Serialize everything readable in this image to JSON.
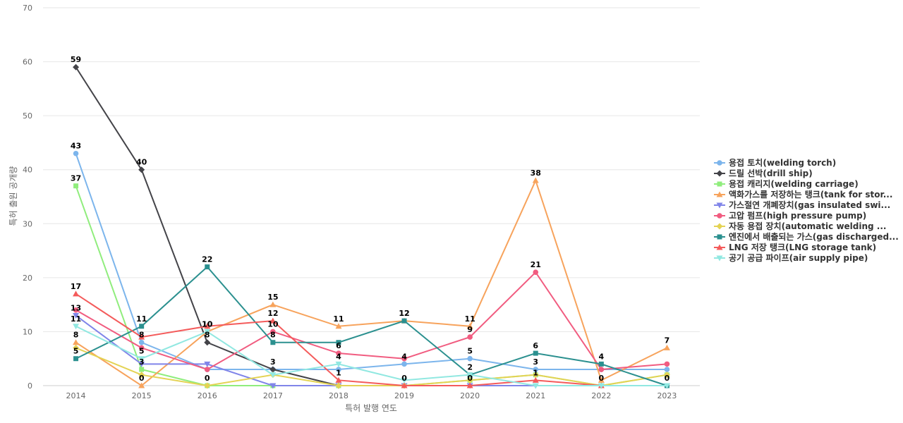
{
  "chart_data": {
    "type": "line",
    "title": "",
    "xlabel": "특허 발행 연도",
    "ylabel": "특허 출원 공개량",
    "x": [
      "2014",
      "2015",
      "2016",
      "2017",
      "2018",
      "2019",
      "2020",
      "2021",
      "2022",
      "2023"
    ],
    "ylim": [
      0,
      70
    ],
    "yticks": [
      "0",
      "10",
      "20",
      "30",
      "40",
      "50",
      "60",
      "70"
    ],
    "grid": true,
    "legend_position": "right",
    "series": [
      {
        "name": "용접 토치(welding torch)",
        "color": "#7cb5ec",
        "marker": "circle",
        "values": [
          43,
          8,
          3,
          3,
          3,
          4,
          5,
          3,
          3,
          3
        ],
        "labels": [
          true,
          true,
          false,
          false,
          false,
          true,
          true,
          true,
          false,
          false
        ]
      },
      {
        "name": "드릴 선박(drill ship)",
        "color": "#434348",
        "marker": "diamond",
        "values": [
          59,
          40,
          8,
          3,
          0,
          null,
          null,
          null,
          null,
          null
        ],
        "labels": [
          true,
          true,
          true,
          true,
          false,
          false,
          false,
          false,
          false,
          false
        ]
      },
      {
        "name": "용접 캐리지(welding carriage)",
        "color": "#90ed7d",
        "marker": "square",
        "values": [
          37,
          3,
          0,
          0,
          0,
          0,
          1,
          2,
          0,
          2
        ],
        "labels": [
          true,
          true,
          true,
          false,
          false,
          false,
          false,
          false,
          false,
          false
        ]
      },
      {
        "name": "액화가스를 저장하는 탱크(tank for stor...",
        "color": "#f7a35c",
        "marker": "triangle",
        "values": [
          8,
          0,
          10,
          15,
          11,
          12,
          11,
          38,
          1,
          7
        ],
        "labels": [
          true,
          true,
          true,
          true,
          true,
          true,
          true,
          true,
          false,
          true
        ]
      },
      {
        "name": "가스절연 개폐장치(gas insulated swi...",
        "color": "#8085e9",
        "marker": "triangle-down",
        "values": [
          13,
          4,
          4,
          0,
          0,
          0,
          0,
          0,
          0,
          0
        ],
        "labels": [
          true,
          false,
          false,
          false,
          false,
          false,
          false,
          false,
          false,
          false
        ]
      },
      {
        "name": "고압 펌프(high pressure pump)",
        "color": "#f15c80",
        "marker": "circle",
        "values": [
          14,
          7,
          3,
          10,
          6,
          5,
          9,
          21,
          3,
          4
        ],
        "labels": [
          false,
          false,
          false,
          true,
          true,
          false,
          true,
          true,
          false,
          false
        ]
      },
      {
        "name": "자동 용접 장치(automatic welding ...",
        "color": "#e4d354",
        "marker": "diamond",
        "values": [
          7,
          2,
          0,
          2,
          0,
          0,
          1,
          2,
          0,
          2
        ],
        "labels": [
          false,
          false,
          false,
          false,
          false,
          false,
          false,
          false,
          false,
          false
        ]
      },
      {
        "name": "엔진에서 배출되는 가스(gas discharged...",
        "color": "#2b908f",
        "marker": "square",
        "values": [
          5,
          11,
          22,
          8,
          8,
          12,
          2,
          6,
          4,
          0
        ],
        "labels": [
          true,
          true,
          true,
          true,
          false,
          true,
          true,
          true,
          true,
          true
        ]
      },
      {
        "name": "LNG 저장 탱크(LNG storage tank)",
        "color": "#f45b5b",
        "marker": "triangle",
        "values": [
          17,
          9,
          11,
          12,
          1,
          0,
          0,
          1,
          0,
          null
        ],
        "labels": [
          true,
          false,
          false,
          true,
          true,
          true,
          true,
          true,
          true,
          false
        ]
      },
      {
        "name": "공기 공급 파이프(air supply pipe)",
        "color": "#91e8e1",
        "marker": "triangle-down",
        "values": [
          11,
          5,
          10,
          2,
          4,
          1,
          2,
          0,
          0,
          0
        ],
        "labels": [
          true,
          true,
          true,
          false,
          true,
          false,
          false,
          false,
          false,
          false
        ]
      }
    ]
  }
}
